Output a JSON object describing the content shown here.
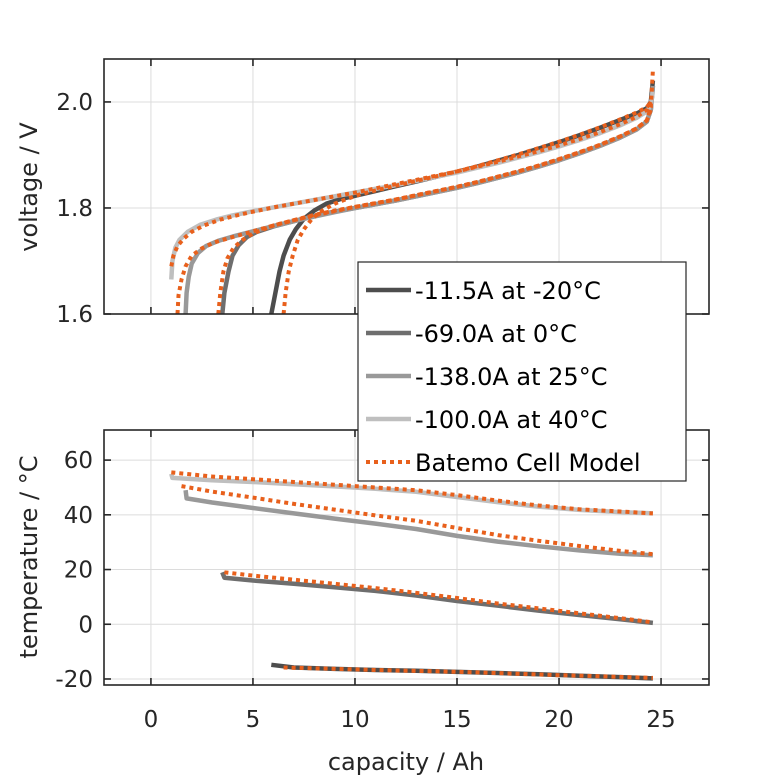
{
  "chart_data": [
    {
      "type": "line",
      "panel": "top",
      "title": "",
      "xlabel": "",
      "ylabel": "voltage / V",
      "xlim": [
        -2.3,
        27.35
      ],
      "ylim": [
        1.6,
        2.081
      ],
      "xticks": [
        0,
        5,
        10,
        15,
        20,
        25
      ],
      "xtick_labels_visible": false,
      "yticks": [
        1.6,
        1.8,
        2.0
      ],
      "ytick_labels": [
        "1.6",
        "1.8",
        "2.0"
      ],
      "grid": true,
      "series": [
        {
          "name": "-11.5A at -20°C",
          "kind": "measurement",
          "color": "#4d4d4d",
          "x": [
            5.9,
            6.1,
            6.3,
            6.5,
            6.8,
            7.1,
            7.5,
            8.0,
            8.6,
            9.3,
            10.0,
            11.0,
            12.0,
            13.0,
            14.0,
            15.0,
            16.0,
            17.0,
            18.0,
            19.0,
            20.0,
            21.0,
            22.0,
            23.0,
            23.8,
            24.3,
            24.5,
            24.6
          ],
          "y": [
            1.6,
            1.64,
            1.68,
            1.71,
            1.74,
            1.76,
            1.78,
            1.795,
            1.808,
            1.817,
            1.823,
            1.832,
            1.841,
            1.85,
            1.859,
            1.868,
            1.878,
            1.889,
            1.9,
            1.912,
            1.924,
            1.937,
            1.951,
            1.966,
            1.978,
            1.988,
            2.0,
            2.04
          ]
        },
        {
          "name": "-69.0A at 0°C",
          "kind": "measurement",
          "color": "#6e6e6e",
          "x": [
            3.5,
            3.6,
            3.8,
            4.0,
            4.3,
            4.7,
            5.2,
            6.0,
            7.0,
            8.0,
            9.0,
            10.0,
            11.0,
            12.0,
            13.0,
            14.0,
            15.0,
            16.0,
            17.0,
            18.0,
            19.0,
            20.0,
            21.0,
            22.0,
            23.0,
            23.8,
            24.3,
            24.5,
            24.6
          ],
          "y": [
            1.6,
            1.64,
            1.68,
            1.71,
            1.73,
            1.745,
            1.755,
            1.765,
            1.775,
            1.785,
            1.793,
            1.8,
            1.807,
            1.814,
            1.822,
            1.83,
            1.838,
            1.847,
            1.857,
            1.867,
            1.878,
            1.89,
            1.903,
            1.917,
            1.933,
            1.948,
            1.963,
            1.985,
            2.03
          ]
        },
        {
          "name": "-138.0A at 25°C",
          "kind": "measurement",
          "color": "#999999",
          "x": [
            1.7,
            1.75,
            1.85,
            2.0,
            2.3,
            2.7,
            3.3,
            4.0,
            5.0,
            6.0,
            7.0,
            8.0,
            9.0,
            10.0,
            11.0,
            12.0,
            13.0,
            14.0,
            15.0,
            16.0,
            17.0,
            18.0,
            19.0,
            20.0,
            21.0,
            22.0,
            23.0,
            23.8,
            24.3,
            24.5,
            24.6
          ],
          "y": [
            1.6,
            1.64,
            1.67,
            1.695,
            1.715,
            1.728,
            1.738,
            1.746,
            1.756,
            1.766,
            1.775,
            1.784,
            1.792,
            1.8,
            1.807,
            1.814,
            1.822,
            1.83,
            1.838,
            1.847,
            1.857,
            1.867,
            1.878,
            1.89,
            1.903,
            1.917,
            1.933,
            1.948,
            1.963,
            1.985,
            2.03
          ]
        },
        {
          "name": "-100.0A at 40°C",
          "kind": "measurement",
          "color": "#bfbfbf",
          "x": [
            1.0,
            1.05,
            1.2,
            1.4,
            1.8,
            2.4,
            3.2,
            4.0,
            5.0,
            6.0,
            7.0,
            8.0,
            9.0,
            10.0,
            11.0,
            12.0,
            13.0,
            14.0,
            15.0,
            16.0,
            17.0,
            18.0,
            19.0,
            20.0,
            21.0,
            22.0,
            23.0,
            23.8,
            24.3,
            24.5,
            24.6
          ],
          "y": [
            1.665,
            1.7,
            1.725,
            1.74,
            1.755,
            1.768,
            1.778,
            1.786,
            1.794,
            1.801,
            1.808,
            1.815,
            1.822,
            1.829,
            1.836,
            1.843,
            1.851,
            1.859,
            1.867,
            1.876,
            1.885,
            1.895,
            1.905,
            1.916,
            1.928,
            1.941,
            1.956,
            1.97,
            1.982,
            1.995,
            2.02
          ]
        },
        {
          "name": "Batemo Cell Model",
          "kind": "model",
          "color": "#e8601c",
          "group": "-20°C",
          "x": [
            6.5,
            6.6,
            6.75,
            6.95,
            7.2,
            7.5,
            7.9,
            8.4,
            9.0,
            9.6,
            10.2,
            11.0,
            12.0,
            13.0,
            14.0,
            15.0,
            16.0,
            17.0,
            18.0,
            19.0,
            20.0,
            21.0,
            22.0,
            23.0,
            23.8,
            24.3,
            24.5
          ],
          "y": [
            1.6,
            1.64,
            1.68,
            1.71,
            1.74,
            1.76,
            1.78,
            1.795,
            1.808,
            1.817,
            1.825,
            1.833,
            1.842,
            1.851,
            1.86,
            1.869,
            1.879,
            1.89,
            1.901,
            1.913,
            1.925,
            1.938,
            1.952,
            1.967,
            1.98,
            1.99,
            2.0
          ]
        },
        {
          "name": "Batemo Cell Model",
          "kind": "model",
          "color": "#e8601c",
          "group": "0°C",
          "x": [
            3.3,
            3.4,
            3.55,
            3.75,
            4.05,
            4.5,
            5.0,
            6.0,
            7.0,
            8.0,
            9.0,
            10.0,
            11.0,
            12.0,
            13.0,
            14.0,
            15.0,
            16.0,
            17.0,
            18.0,
            19.0,
            20.0,
            21.0,
            22.0,
            23.0,
            23.8,
            24.3,
            24.5
          ],
          "y": [
            1.6,
            1.64,
            1.68,
            1.705,
            1.725,
            1.74,
            1.752,
            1.767,
            1.777,
            1.787,
            1.795,
            1.802,
            1.809,
            1.816,
            1.824,
            1.832,
            1.84,
            1.849,
            1.859,
            1.869,
            1.88,
            1.892,
            1.905,
            1.919,
            1.935,
            1.95,
            1.965,
            1.985
          ]
        },
        {
          "name": "Batemo Cell Model",
          "kind": "model",
          "color": "#e8601c",
          "group": "25°C",
          "x": [
            1.3,
            1.35,
            1.5,
            1.7,
            2.0,
            2.5,
            3.1,
            4.0,
            5.0,
            6.0,
            7.0,
            8.0,
            9.0,
            10.0,
            11.0,
            12.0,
            13.0,
            14.0,
            15.0,
            16.0,
            17.0,
            18.0,
            19.0,
            20.0,
            21.0,
            22.0,
            23.0,
            23.8,
            24.3,
            24.5,
            24.6
          ],
          "y": [
            1.6,
            1.635,
            1.665,
            1.69,
            1.71,
            1.724,
            1.735,
            1.745,
            1.756,
            1.767,
            1.777,
            1.786,
            1.794,
            1.802,
            1.809,
            1.816,
            1.824,
            1.832,
            1.84,
            1.849,
            1.859,
            1.869,
            1.88,
            1.892,
            1.905,
            1.919,
            1.935,
            1.95,
            1.965,
            1.99,
            2.06
          ]
        },
        {
          "name": "Batemo Cell Model",
          "kind": "model",
          "color": "#e8601c",
          "group": "40°C",
          "x": [
            1.0,
            1.1,
            1.3,
            1.6,
            2.0,
            2.6,
            3.4,
            4.2,
            5.0,
            6.0,
            7.0,
            8.0,
            9.0,
            10.0,
            11.0,
            12.0,
            13.0,
            14.0,
            15.0,
            16.0,
            17.0,
            18.0,
            19.0,
            20.0,
            21.0,
            22.0,
            23.0,
            23.8,
            24.3,
            24.5
          ],
          "y": [
            1.69,
            1.71,
            1.728,
            1.742,
            1.755,
            1.767,
            1.778,
            1.786,
            1.793,
            1.801,
            1.808,
            1.815,
            1.822,
            1.829,
            1.837,
            1.845,
            1.853,
            1.861,
            1.869,
            1.878,
            1.887,
            1.897,
            1.907,
            1.918,
            1.93,
            1.943,
            1.958,
            1.972,
            1.985,
            2.0
          ]
        }
      ],
      "legend": {
        "placement": "lower-right (overlapping both panels)",
        "entries": [
          {
            "label": "-11.5A at -20°C",
            "color": "#4d4d4d",
            "style": "solid"
          },
          {
            "label": "-69.0A at 0°C",
            "color": "#6e6e6e",
            "style": "solid"
          },
          {
            "label": "-138.0A at 25°C",
            "color": "#999999",
            "style": "solid"
          },
          {
            "label": "-100.0A at 40°C",
            "color": "#bfbfbf",
            "style": "solid"
          },
          {
            "label": "Batemo Cell Model",
            "color": "#e8601c",
            "style": "dotted"
          }
        ]
      }
    },
    {
      "type": "line",
      "panel": "bottom",
      "title": "",
      "xlabel": "capacity / Ah",
      "ylabel": "temperature / °C",
      "xlim": [
        -2.3,
        27.35
      ],
      "ylim": [
        -22.2,
        71
      ],
      "xticks": [
        0,
        5,
        10,
        15,
        20,
        25
      ],
      "xtick_labels": [
        "0",
        "5",
        "10",
        "15",
        "20",
        "25"
      ],
      "yticks": [
        -20,
        0,
        20,
        40,
        60
      ],
      "ytick_labels": [
        "-20",
        "0",
        "20",
        "40",
        "60"
      ],
      "grid": true,
      "series": [
        {
          "name": "-11.5A at -20°C",
          "kind": "measurement",
          "color": "#4d4d4d",
          "x": [
            5.9,
            7,
            9,
            11,
            13,
            15,
            17,
            19,
            21,
            23,
            24.6
          ],
          "y": [
            -14.8,
            -15.8,
            -16.3,
            -16.7,
            -17.0,
            -17.4,
            -17.8,
            -18.3,
            -18.8,
            -19.3,
            -19.8
          ]
        },
        {
          "name": "-69.0A at 0°C",
          "kind": "measurement",
          "color": "#6e6e6e",
          "x": [
            3.5,
            3.6,
            5,
            7,
            9,
            11,
            13,
            15,
            17,
            19,
            21,
            23,
            24.6
          ],
          "y": [
            19.0,
            17.0,
            16.0,
            14.8,
            13.5,
            12.2,
            10.5,
            8.5,
            6.8,
            5.0,
            3.4,
            1.8,
            0.5
          ]
        },
        {
          "name": "-138.0A at 25°C",
          "kind": "measurement",
          "color": "#999999",
          "x": [
            1.7,
            1.75,
            3,
            5,
            7,
            9,
            11,
            13,
            15,
            17,
            19,
            21,
            23,
            24.6
          ],
          "y": [
            49.0,
            46.0,
            44.5,
            42.5,
            40.5,
            38.6,
            36.8,
            34.8,
            32.3,
            30.2,
            28.5,
            27.0,
            25.8,
            25.2
          ]
        },
        {
          "name": "-100.0A at 40°C",
          "kind": "measurement",
          "color": "#bfbfbf",
          "x": [
            1.0,
            1.05,
            3,
            5,
            7,
            9,
            11,
            13,
            15,
            17,
            19,
            21,
            23,
            24.6
          ],
          "y": [
            55.0,
            53.5,
            52.6,
            52.0,
            51.2,
            50.4,
            49.5,
            48.4,
            46.5,
            44.6,
            43.0,
            41.8,
            41.0,
            40.5
          ]
        },
        {
          "name": "Batemo Cell Model",
          "kind": "model",
          "color": "#e8601c",
          "group": "-20°C",
          "x": [
            6.5,
            8,
            10,
            12,
            14,
            16,
            18,
            20,
            22,
            24.6
          ],
          "y": [
            -15.8,
            -16.1,
            -16.5,
            -16.9,
            -17.2,
            -17.6,
            -18.1,
            -18.6,
            -19.0,
            -19.6
          ]
        },
        {
          "name": "Batemo Cell Model",
          "kind": "model",
          "color": "#e8601c",
          "group": "0°C",
          "x": [
            3.6,
            5,
            7,
            9,
            11,
            13,
            15,
            17,
            19,
            21,
            23,
            24.5
          ],
          "y": [
            19.0,
            17.8,
            16.3,
            14.8,
            13.2,
            11.5,
            9.6,
            7.6,
            5.8,
            4.0,
            2.2,
            0.8
          ]
        },
        {
          "name": "Batemo Cell Model",
          "kind": "model",
          "color": "#e8601c",
          "group": "25°C",
          "x": [
            1.5,
            3,
            5,
            7,
            9,
            11,
            13,
            15,
            17,
            19,
            21,
            23,
            24.6
          ],
          "y": [
            50.5,
            48.5,
            46.3,
            44.0,
            41.9,
            39.8,
            37.8,
            35.2,
            32.6,
            30.5,
            28.6,
            26.8,
            25.6
          ]
        },
        {
          "name": "Batemo Cell Model",
          "kind": "model",
          "color": "#e8601c",
          "group": "40°C",
          "x": [
            1.0,
            3,
            5,
            7,
            9,
            11,
            13,
            15,
            17,
            19,
            21,
            23,
            24.6
          ],
          "y": [
            55.5,
            54.0,
            53.0,
            52.0,
            51.0,
            50.0,
            49.0,
            47.2,
            45.2,
            43.4,
            42.0,
            41.2,
            40.5
          ]
        }
      ]
    }
  ]
}
